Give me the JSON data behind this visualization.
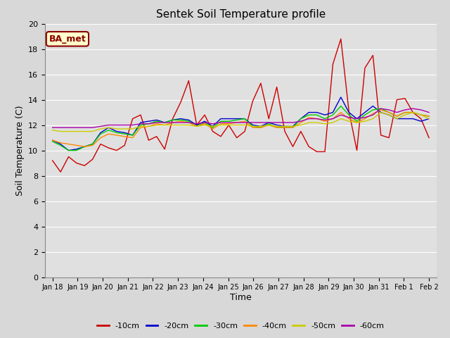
{
  "title": "Sentek Soil Temperature profile",
  "xlabel": "Time",
  "ylabel": "Soil Temperature (C)",
  "ylim": [
    0,
    20
  ],
  "yticks": [
    0,
    2,
    4,
    6,
    8,
    10,
    12,
    14,
    16,
    18,
    20
  ],
  "fig_bg_color": "#d8d8d8",
  "plot_bg_color": "#e0e0e0",
  "annotation": "BA_met",
  "x_labels": [
    "Jan 18",
    "Jan 19",
    "Jan 20",
    "Jan 21",
    "Jan 22",
    "Jan 23",
    "Jan 24",
    "Jan 25",
    "Jan 26",
    "Jan 27",
    "Jan 28",
    "Jan 29",
    "Jan 30",
    "Jan 31",
    "Feb 1",
    "Feb 2"
  ],
  "series": {
    "-10cm": {
      "color": "#cc0000",
      "values": [
        9.2,
        8.3,
        9.5,
        9.0,
        8.8,
        9.3,
        10.5,
        10.2,
        10.0,
        10.4,
        12.5,
        12.8,
        10.8,
        11.1,
        10.1,
        12.5,
        13.8,
        15.5,
        12.0,
        12.8,
        11.5,
        11.1,
        12.0,
        11.0,
        11.5,
        13.9,
        15.3,
        12.5,
        15.0,
        11.5,
        10.3,
        11.5,
        10.3,
        9.9,
        9.9,
        16.8,
        18.8,
        13.1,
        10.0,
        16.5,
        17.5,
        11.2,
        11.0,
        14.0,
        14.1,
        13.0,
        12.5,
        11.0
      ]
    },
    "-20cm": {
      "color": "#0000cc",
      "values": [
        10.8,
        10.5,
        10.0,
        10.1,
        10.3,
        10.5,
        11.4,
        11.8,
        11.5,
        11.4,
        11.2,
        12.2,
        12.3,
        12.4,
        12.2,
        12.4,
        12.5,
        12.4,
        12.0,
        12.3,
        11.9,
        12.5,
        12.5,
        12.5,
        12.5,
        12.0,
        11.9,
        12.2,
        12.0,
        11.9,
        11.9,
        12.5,
        13.0,
        13.0,
        12.8,
        13.0,
        14.2,
        13.0,
        12.5,
        13.0,
        13.5,
        13.0,
        12.8,
        12.5,
        12.5,
        12.5,
        12.3,
        12.5
      ]
    },
    "-30cm": {
      "color": "#00cc00",
      "values": [
        10.7,
        10.4,
        10.0,
        10.0,
        10.3,
        10.5,
        11.3,
        11.6,
        11.4,
        11.3,
        11.2,
        12.0,
        12.1,
        12.3,
        12.2,
        12.4,
        12.4,
        12.3,
        11.9,
        12.2,
        11.8,
        12.3,
        12.3,
        12.4,
        12.5,
        11.9,
        11.8,
        12.1,
        11.8,
        11.8,
        11.8,
        12.5,
        12.8,
        12.8,
        12.5,
        12.8,
        13.5,
        12.8,
        12.3,
        12.8,
        13.2,
        13.3,
        13.0,
        12.7,
        13.0,
        13.0,
        12.8,
        12.7
      ]
    },
    "-40cm": {
      "color": "#ff8800",
      "values": [
        10.8,
        10.6,
        10.5,
        10.4,
        10.3,
        10.4,
        11.0,
        11.3,
        11.2,
        11.1,
        11.0,
        11.8,
        11.9,
        12.1,
        12.0,
        12.2,
        12.3,
        12.2,
        11.9,
        12.1,
        11.7,
        12.1,
        12.1,
        12.2,
        12.3,
        11.8,
        11.8,
        12.0,
        11.8,
        11.8,
        11.8,
        12.2,
        12.6,
        12.5,
        12.3,
        12.5,
        13.0,
        12.5,
        12.2,
        12.5,
        12.9,
        13.2,
        13.0,
        12.7,
        13.0,
        13.0,
        12.8,
        12.7
      ]
    },
    "-50cm": {
      "color": "#cccc00",
      "values": [
        11.6,
        11.5,
        11.5,
        11.5,
        11.5,
        11.5,
        11.7,
        11.8,
        11.7,
        11.7,
        11.7,
        11.9,
        11.9,
        12.0,
        12.0,
        12.0,
        12.0,
        12.0,
        11.9,
        12.0,
        11.9,
        12.0,
        12.0,
        12.0,
        12.0,
        11.9,
        11.9,
        12.0,
        11.9,
        11.9,
        11.9,
        12.0,
        12.2,
        12.2,
        12.1,
        12.2,
        12.5,
        12.3,
        12.2,
        12.3,
        12.5,
        13.0,
        12.8,
        12.5,
        12.8,
        13.0,
        12.8,
        12.5
      ]
    },
    "-60cm": {
      "color": "#aa00aa",
      "values": [
        11.8,
        11.8,
        11.8,
        11.8,
        11.8,
        11.8,
        11.9,
        12.0,
        12.0,
        12.0,
        12.0,
        12.1,
        12.1,
        12.2,
        12.2,
        12.2,
        12.2,
        12.2,
        12.1,
        12.2,
        12.1,
        12.2,
        12.2,
        12.2,
        12.2,
        12.2,
        12.2,
        12.2,
        12.2,
        12.2,
        12.2,
        12.3,
        12.5,
        12.5,
        12.4,
        12.5,
        12.8,
        12.6,
        12.5,
        12.6,
        12.8,
        13.3,
        13.2,
        13.0,
        13.2,
        13.3,
        13.2,
        13.0
      ]
    }
  }
}
